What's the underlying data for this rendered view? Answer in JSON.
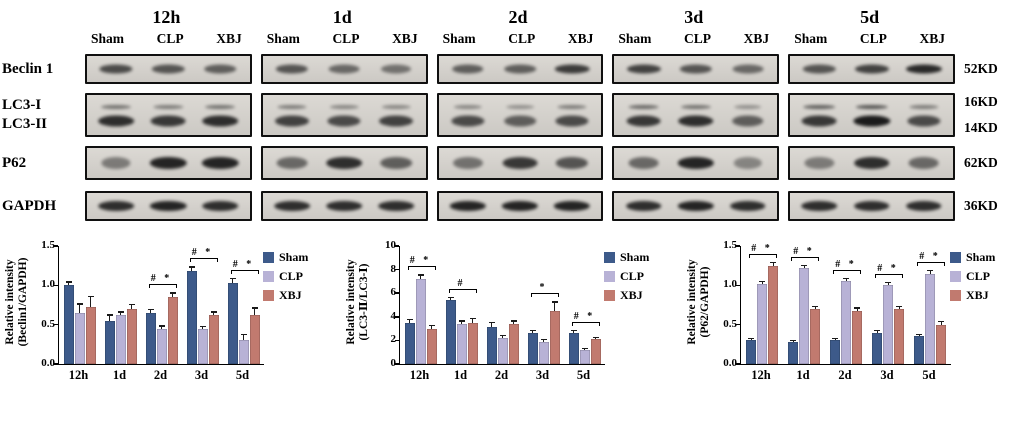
{
  "blots": {
    "time_groups": [
      "12h",
      "1d",
      "2d",
      "3d",
      "5d"
    ],
    "lane_labels": [
      "Sham",
      "CLP",
      "XBJ"
    ],
    "rows": [
      {
        "id": "beclin",
        "label": "Beclin 1",
        "kd": "52KD"
      },
      {
        "id": "lc3",
        "label_top": "LC3-I",
        "label_bottom": "LC3-II",
        "kd_top": "16KD",
        "kd_bottom": "14KD"
      },
      {
        "id": "p62",
        "label": "P62",
        "kd": "62KD"
      },
      {
        "id": "gapdh",
        "label": "GAPDH",
        "kd": "36KD"
      }
    ]
  },
  "chart_data": [
    {
      "type": "bar",
      "ylabel_line1": "Relative intensity",
      "ylabel_line2": "(Beclin1/GAPDH)",
      "categories": [
        "12h",
        "1d",
        "2d",
        "3d",
        "5d"
      ],
      "ylim": [
        0,
        1.5
      ],
      "yticks": [
        "0.0",
        "0.5",
        "1.0",
        "1.5"
      ],
      "legend_position": "right-top",
      "grid": false,
      "series": [
        {
          "name": "Sham",
          "color": "#3d5a8a",
          "values": [
            1.0,
            0.55,
            0.65,
            1.18,
            1.03
          ],
          "errors": [
            0.05,
            0.08,
            0.05,
            0.06,
            0.06
          ]
        },
        {
          "name": "CLP",
          "color": "#b8b2d6",
          "values": [
            0.65,
            0.62,
            0.45,
            0.44,
            0.3
          ],
          "errors": [
            0.12,
            0.05,
            0.04,
            0.04,
            0.08
          ]
        },
        {
          "name": "XBJ",
          "color": "#c17a6f",
          "values": [
            0.72,
            0.7,
            0.85,
            0.62,
            0.62
          ],
          "errors": [
            0.15,
            0.06,
            0.06,
            0.05,
            0.1
          ]
        }
      ],
      "significance": {
        "2d": "# *",
        "3d": "# *",
        "5d": "# *"
      }
    },
    {
      "type": "bar",
      "ylabel_line1": "Relative intensity",
      "ylabel_line2": "(LC3-Ⅱ/LC3-Ⅰ)",
      "categories": [
        "12h",
        "1d",
        "2d",
        "3d",
        "5d"
      ],
      "ylim": [
        0,
        10
      ],
      "yticks": [
        "0",
        "2",
        "4",
        "6",
        "8",
        "10"
      ],
      "legend_position": "right-top",
      "grid": false,
      "series": [
        {
          "name": "Sham",
          "color": "#3d5a8a",
          "values": [
            3.5,
            5.4,
            3.1,
            2.6,
            2.6
          ],
          "errors": [
            0.3,
            0.3,
            0.5,
            0.3,
            0.3
          ]
        },
        {
          "name": "CLP",
          "color": "#b8b2d6",
          "values": [
            7.2,
            3.4,
            2.2,
            1.9,
            1.2
          ],
          "errors": [
            0.4,
            0.3,
            0.3,
            0.2,
            0.15
          ]
        },
        {
          "name": "XBJ",
          "color": "#c17a6f",
          "values": [
            3.0,
            3.5,
            3.4,
            4.5,
            2.1
          ],
          "errors": [
            0.3,
            0.4,
            0.3,
            0.8,
            0.2
          ]
        }
      ],
      "significance": {
        "12h": "# *",
        "1d": "#",
        "3d": "*",
        "5d": "# *"
      }
    },
    {
      "type": "bar",
      "ylabel_line1": "Relative intensity",
      "ylabel_line2": "(P62/GAPDH)",
      "categories": [
        "12h",
        "1d",
        "2d",
        "3d",
        "5d"
      ],
      "ylim": [
        0,
        1.5
      ],
      "yticks": [
        "0.0",
        "0.5",
        "1.0",
        "1.5"
      ],
      "legend_position": "right-top",
      "grid": false,
      "series": [
        {
          "name": "Sham",
          "color": "#3d5a8a",
          "values": [
            0.3,
            0.28,
            0.3,
            0.4,
            0.35
          ],
          "errors": [
            0.03,
            0.03,
            0.03,
            0.03,
            0.03
          ]
        },
        {
          "name": "CLP",
          "color": "#b8b2d6",
          "values": [
            1.02,
            1.22,
            1.05,
            1.0,
            1.15
          ],
          "errors": [
            0.04,
            0.04,
            0.04,
            0.04,
            0.05
          ]
        },
        {
          "name": "XBJ",
          "color": "#c17a6f",
          "values": [
            1.25,
            0.7,
            0.68,
            0.7,
            0.5
          ],
          "errors": [
            0.05,
            0.04,
            0.04,
            0.04,
            0.05
          ]
        }
      ],
      "significance": {
        "12h": "# *",
        "1d": "# *",
        "2d": "# *",
        "3d": "# *",
        "5d": "# *"
      }
    }
  ]
}
